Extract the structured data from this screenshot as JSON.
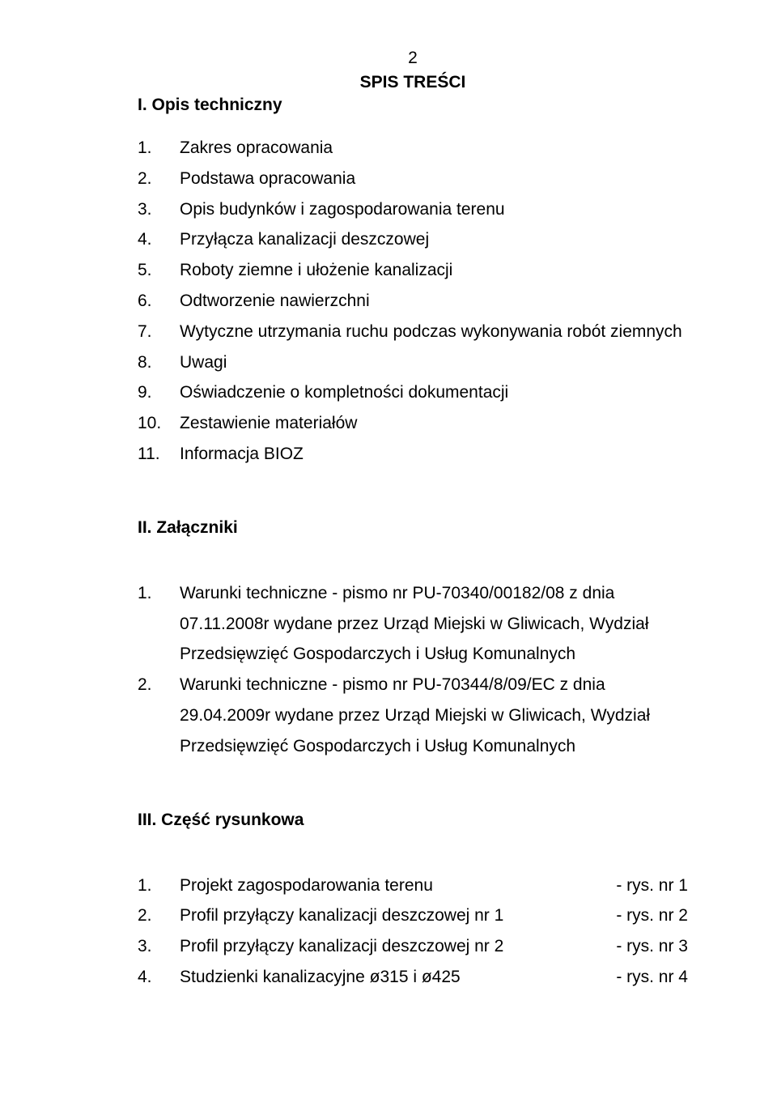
{
  "page_number": "2",
  "title": "SPIS TREŚCI",
  "sections": {
    "s1": {
      "heading": "I. Opis techniczny",
      "items": [
        {
          "n": "1.",
          "t": "Zakres opracowania"
        },
        {
          "n": "2.",
          "t": "Podstawa opracowania"
        },
        {
          "n": "3.",
          "t": "Opis budynków i zagospodarowania terenu"
        },
        {
          "n": "4.",
          "t": "Przyłącza kanalizacji deszczowej"
        },
        {
          "n": "5.",
          "t": "Roboty ziemne i ułożenie kanalizacji"
        },
        {
          "n": "6.",
          "t": "Odtworzenie nawierzchni"
        },
        {
          "n": "7.",
          "t": "Wytyczne utrzymania ruchu podczas wykonywania robót ziemnych"
        },
        {
          "n": "8.",
          "t": "Uwagi"
        },
        {
          "n": "9.",
          "t": "Oświadczenie o kompletności dokumentacji"
        },
        {
          "n": "10.",
          "t": "Zestawienie materiałów"
        },
        {
          "n": "11.",
          "t": "Informacja BIOZ"
        }
      ]
    },
    "s2": {
      "heading": "II. Załączniki",
      "items": [
        {
          "n": "1.",
          "t": "Warunki techniczne - pismo nr PU-70340/00182/08 z dnia 07.11.2008r wydane przez Urząd Miejski w Gliwicach, Wydział Przedsięwzięć Gospodarczych i Usług Komunalnych"
        },
        {
          "n": "2.",
          "t": "Warunki techniczne - pismo nr PU-70344/8/09/EC z dnia 29.04.2009r wydane przez Urząd Miejski w Gliwicach, Wydział Przedsięwzięć Gospodarczych i Usług Komunalnych"
        }
      ]
    },
    "s3": {
      "heading": "III. Część rysunkowa",
      "items": [
        {
          "n": "1.",
          "t": "Projekt zagospodarowania terenu",
          "r": "- rys. nr 1"
        },
        {
          "n": "2.",
          "t": "Profil przyłączy kanalizacji deszczowej nr 1",
          "r": "- rys. nr 2"
        },
        {
          "n": "3.",
          "t": "Profil przyłączy kanalizacji deszczowej nr 2",
          "r": "- rys. nr 3"
        },
        {
          "n": "4.",
          "t": "Studzienki kanalizacyjne ø315 i ø425",
          "r": "- rys. nr 4"
        }
      ]
    }
  }
}
